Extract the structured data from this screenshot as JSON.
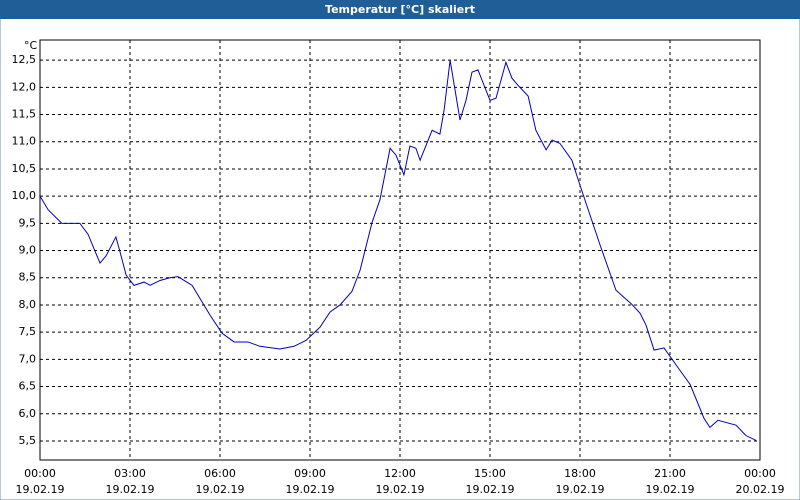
{
  "chart_data": {
    "type": "line",
    "title": "Temperatur [°C] skaliert",
    "y_unit": "°C",
    "x": [
      0,
      0.27,
      0.73,
      1.0,
      1.33,
      1.6,
      2.0,
      2.2,
      2.53,
      2.67,
      2.87,
      3.13,
      3.47,
      3.67,
      4.0,
      4.33,
      4.6,
      5.07,
      5.67,
      6.07,
      6.47,
      6.93,
      7.33,
      8.0,
      8.47,
      8.87,
      9.33,
      9.67,
      10.0,
      10.4,
      10.67,
      11.07,
      11.33,
      11.67,
      11.87,
      12.13,
      12.33,
      12.53,
      12.67,
      13.07,
      13.33,
      13.47,
      13.67,
      14.0,
      14.2,
      14.4,
      14.6,
      15.0,
      15.2,
      15.53,
      15.73,
      15.93,
      16.27,
      16.53,
      16.87,
      17.07,
      17.33,
      17.73,
      18.0,
      18.67,
      19.2,
      19.73,
      20.0,
      20.2,
      20.47,
      20.8,
      21.33,
      21.67,
      22.13,
      22.33,
      22.6,
      23.2,
      23.53,
      23.87
    ],
    "series": [
      {
        "name": "Temperatur",
        "color": "#0000c0",
        "values": [
          10.0,
          9.75,
          9.5,
          9.5,
          9.5,
          9.3,
          8.77,
          8.9,
          9.25,
          8.97,
          8.55,
          8.36,
          8.42,
          8.36,
          8.45,
          8.5,
          8.52,
          8.36,
          7.81,
          7.48,
          7.32,
          7.32,
          7.24,
          7.19,
          7.24,
          7.35,
          7.59,
          7.87,
          8.0,
          8.25,
          8.64,
          9.52,
          9.93,
          10.88,
          10.75,
          10.39,
          10.92,
          10.88,
          10.66,
          11.21,
          11.14,
          11.58,
          12.5,
          11.4,
          11.76,
          12.28,
          12.32,
          11.76,
          11.8,
          12.46,
          12.17,
          12.04,
          11.84,
          11.21,
          10.85,
          11.03,
          10.97,
          10.66,
          10.2,
          9.1,
          8.27,
          8.01,
          7.85,
          7.63,
          7.17,
          7.21,
          6.8,
          6.54,
          5.92,
          5.75,
          5.88,
          5.79,
          5.6,
          5.51
        ]
      }
    ],
    "xlim": [
      0,
      24
    ],
    "xticks": [
      {
        "value": 0,
        "label": "00:00",
        "date": "19.02.19"
      },
      {
        "value": 3,
        "label": "03:00",
        "date": "19.02.19"
      },
      {
        "value": 6,
        "label": "06:00",
        "date": "19.02.19"
      },
      {
        "value": 9,
        "label": "09:00",
        "date": "19.02.19"
      },
      {
        "value": 12,
        "label": "12:00",
        "date": "19.02.19"
      },
      {
        "value": 15,
        "label": "15:00",
        "date": "19.02.19"
      },
      {
        "value": 18,
        "label": "18:00",
        "date": "19.02.19"
      },
      {
        "value": 21,
        "label": "21:00",
        "date": "19.02.19"
      },
      {
        "value": 24,
        "label": "00:00",
        "date": "20.02.19"
      }
    ],
    "ylim": [
      5.15,
      12.87
    ],
    "yticks": [
      {
        "value": 5.5,
        "label": "5,5"
      },
      {
        "value": 6,
        "label": "6,0"
      },
      {
        "value": 6.5,
        "label": "6,5"
      },
      {
        "value": 7,
        "label": "7,0"
      },
      {
        "value": 7.5,
        "label": "7,5"
      },
      {
        "value": 8,
        "label": "8,0"
      },
      {
        "value": 8.5,
        "label": "8,5"
      },
      {
        "value": 9,
        "label": "9,0"
      },
      {
        "value": 9.5,
        "label": "9,5"
      },
      {
        "value": 10,
        "label": "10,0"
      },
      {
        "value": 10.5,
        "label": "10,5"
      },
      {
        "value": 11,
        "label": "11,0"
      },
      {
        "value": 11.5,
        "label": "11,5"
      },
      {
        "value": 12,
        "label": "12,0"
      },
      {
        "value": 12.5,
        "label": "12,5"
      }
    ],
    "grid": true
  }
}
